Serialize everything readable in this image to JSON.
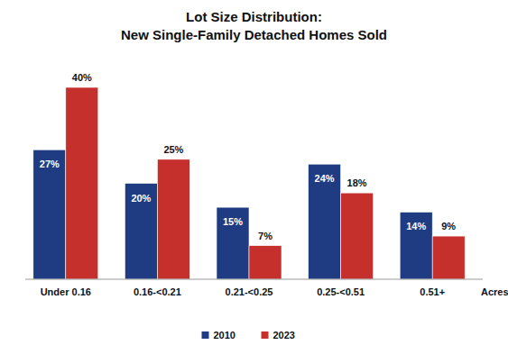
{
  "chart_data": {
    "type": "bar",
    "title": "Lot Size Distribution:",
    "subtitle": "New Single-Family Detached Homes Sold",
    "x_label": "Acres",
    "categories": [
      "Under 0.16",
      "0.16-<0.21",
      "0.21-<0.25",
      "0.25-<0.51",
      "0.51+"
    ],
    "series": [
      {
        "name": "2010",
        "color": "#1f3b82",
        "values": [
          27,
          20,
          15,
          24,
          14
        ],
        "value_labels": [
          "27%",
          "20%",
          "15%",
          "24%",
          "14%"
        ]
      },
      {
        "name": "2023",
        "color": "#c6302c",
        "values": [
          40,
          25,
          7,
          18,
          9
        ],
        "value_labels": [
          "40%",
          "25%",
          "7%",
          "18%",
          "9%"
        ]
      }
    ],
    "ylim": [
      0,
      40
    ],
    "data_labels": true,
    "tick_labels": "x",
    "legend": "bottom"
  }
}
